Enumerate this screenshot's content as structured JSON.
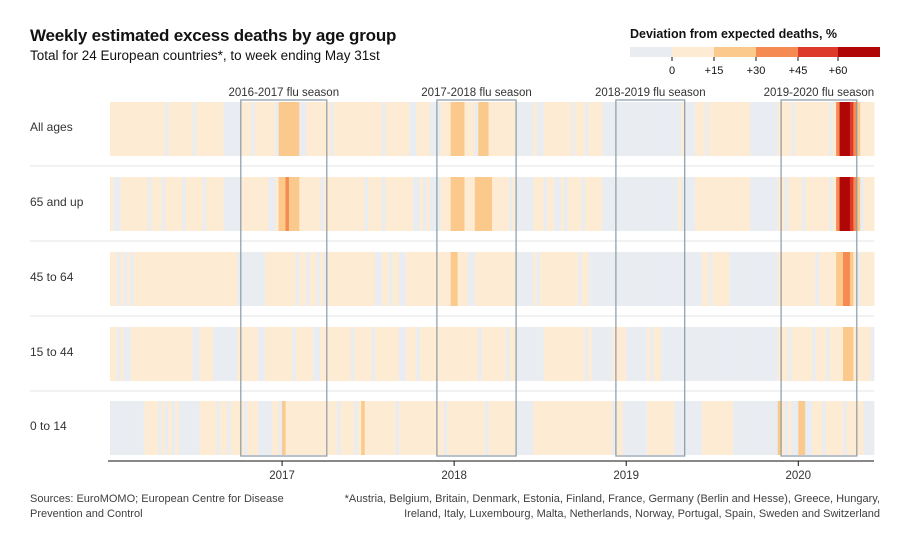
{
  "header": {
    "title": "Weekly estimated excess deaths by age group",
    "subtitle": "Total for 24 European countries*, to week ending May 31st"
  },
  "legend": {
    "title": "Deviation from expected deaths, %",
    "ticks": [
      "0",
      "+15",
      "+30",
      "+45",
      "+60"
    ],
    "colors": [
      "#e9edf2",
      "#fdebd3",
      "#fcc98c",
      "#f58a52",
      "#de3a2c",
      "#b10606"
    ]
  },
  "footer": {
    "sources": "Sources: EuroMOMO; European Centre for Disease Prevention and Control",
    "footnote": "*Austria, Belgium, Britain, Denmark, Estonia, Finland, France, Germany (Berlin and Hesse), Greece, Hungary, Ireland, Italy, Luxembourg, Malta, Netherlands, Norway, Portugal, Spain, Sweden and Switzerland"
  },
  "chart_data": {
    "type": "heatmap",
    "title": "Weekly estimated excess deaths by age group",
    "xlabel": "",
    "ylabel": "",
    "value_unit": "% deviation from expected deaths",
    "color_scale": {
      "bins": [
        {
          "from": -100,
          "to": 0,
          "color": "#e9edf2"
        },
        {
          "from": 0,
          "to": 15,
          "color": "#fdebd3"
        },
        {
          "from": 15,
          "to": 30,
          "color": "#fcc98c"
        },
        {
          "from": 30,
          "to": 45,
          "color": "#f58a52"
        },
        {
          "from": 45,
          "to": 60,
          "color": "#de3a2c"
        },
        {
          "from": 60,
          "to": 200,
          "color": "#b10606"
        }
      ]
    },
    "x_range_weeks": [
      0,
      222
    ],
    "weeks_note": "week index 0 = first week shown (early Jan 2016), last week = week ending May 31st 2020",
    "year_ticks": [
      {
        "label": "2017",
        "week": 50
      },
      {
        "label": "2018",
        "week": 100
      },
      {
        "label": "2019",
        "week": 150
      },
      {
        "label": "2020",
        "week": 200
      }
    ],
    "flu_seasons": [
      {
        "label": "2016-2017 flu season",
        "start_week": 38,
        "end_week": 63
      },
      {
        "label": "2017-2018 flu season",
        "start_week": 95,
        "end_week": 118
      },
      {
        "label": "2018-2019 flu season",
        "start_week": 147,
        "end_week": 167
      },
      {
        "label": "2019-2020 flu season",
        "start_week": 195,
        "end_week": 217
      }
    ],
    "rows": [
      {
        "label": "All ages",
        "base": 8,
        "neg": [
          [
            33,
            38
          ],
          [
            93,
            96
          ],
          [
            118,
            123
          ],
          [
            124,
            126
          ],
          [
            143,
            165
          ],
          [
            167,
            170
          ],
          [
            186,
            194
          ]
        ],
        "segments": [
          {
            "start": 49,
            "end": 55,
            "value": 20
          },
          {
            "start": 99,
            "end": 103,
            "value": 20
          },
          {
            "start": 107,
            "end": 110,
            "value": 20
          },
          {
            "start": 211,
            "end": 213,
            "value": 40
          },
          {
            "start": 212,
            "end": 213,
            "value": 60
          },
          {
            "start": 213,
            "end": 215,
            "value": 75
          },
          {
            "start": 215,
            "end": 216,
            "value": 50
          },
          {
            "start": 216,
            "end": 217,
            "value": 35
          },
          {
            "start": 217,
            "end": 218,
            "value": 20
          }
        ]
      },
      {
        "label": "65 and up",
        "base": 8,
        "neg": [
          [
            33,
            38
          ],
          [
            93,
            96
          ],
          [
            118,
            123
          ],
          [
            143,
            165
          ],
          [
            167,
            170
          ],
          [
            186,
            194
          ],
          [
            46,
            48
          ],
          [
            88,
            90
          ]
        ],
        "segments": [
          {
            "start": 49,
            "end": 55,
            "value": 20
          },
          {
            "start": 51,
            "end": 52,
            "value": 35
          },
          {
            "start": 99,
            "end": 103,
            "value": 20
          },
          {
            "start": 106,
            "end": 111,
            "value": 20
          },
          {
            "start": 211,
            "end": 213,
            "value": 40
          },
          {
            "start": 212,
            "end": 213,
            "value": 65
          },
          {
            "start": 213,
            "end": 215,
            "value": 75
          },
          {
            "start": 215,
            "end": 216,
            "value": 55
          },
          {
            "start": 216,
            "end": 217,
            "value": 35
          },
          {
            "start": 217,
            "end": 218,
            "value": 20
          }
        ]
      },
      {
        "label": "45 to 64",
        "base": 8,
        "neg": [
          [
            38,
            45
          ],
          [
            118,
            123
          ],
          [
            140,
            172
          ],
          [
            180,
            194
          ],
          [
            77,
            79
          ]
        ],
        "segments": [
          {
            "start": 99,
            "end": 101,
            "value": 20
          },
          {
            "start": 211,
            "end": 213,
            "value": 20
          },
          {
            "start": 213,
            "end": 215,
            "value": 38
          },
          {
            "start": 215,
            "end": 216,
            "value": 20
          }
        ]
      },
      {
        "label": "15 to 44",
        "base": 8,
        "neg": [
          [
            30,
            37
          ],
          [
            118,
            126
          ],
          [
            140,
            146
          ],
          [
            150,
            156
          ],
          [
            160,
            194
          ],
          [
            4,
            6
          ],
          [
            84,
            86
          ]
        ],
        "segments": [
          {
            "start": 213,
            "end": 216,
            "value": 20
          }
        ]
      },
      {
        "label": "0 to 14",
        "base": 5,
        "neg": [
          [
            0,
            10
          ],
          [
            20,
            26
          ],
          [
            43,
            47
          ],
          [
            118,
            122
          ],
          [
            150,
            156
          ],
          [
            164,
            172
          ],
          [
            181,
            194
          ],
          [
            200,
            204
          ],
          [
            219,
            222
          ]
        ],
        "segments": [
          {
            "start": 50,
            "end": 51,
            "value": 18
          },
          {
            "start": 73,
            "end": 74,
            "value": 18
          },
          {
            "start": 194,
            "end": 195,
            "value": 18
          },
          {
            "start": 200,
            "end": 202,
            "value": 20
          }
        ]
      }
    ]
  }
}
